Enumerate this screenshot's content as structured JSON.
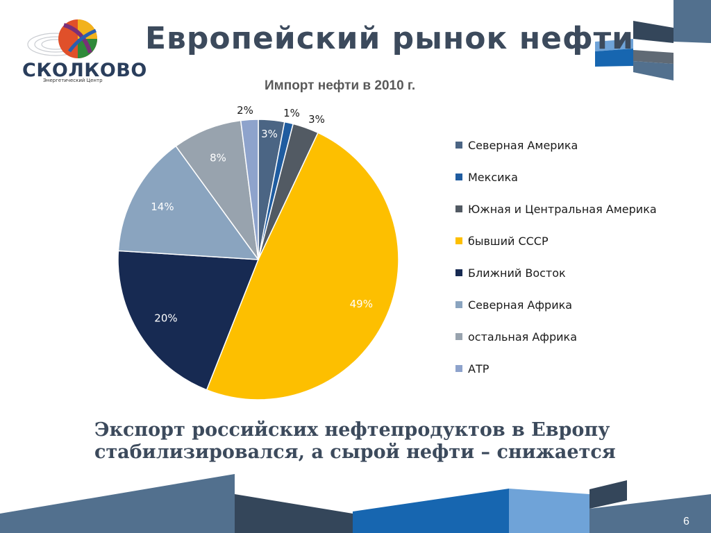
{
  "logo": {
    "text": "СКОЛКОВО",
    "subtitle": "Энергетический Центр"
  },
  "title": "Европейский рынок нефти",
  "caption": {
    "line1": "Экспорт российских нефтепродуктов в Европу",
    "line2": "стабилизировался, а сырой нефти – снижается"
  },
  "page_number": "6",
  "colors": {
    "title": "#3c4a5c",
    "deco_dark": "#34465a",
    "deco_mid": "#52708e",
    "deco_light": "#6fa3d8",
    "deco_blue": "#1766b0"
  },
  "chart_data": {
    "type": "pie",
    "title": "Импорт нефти в 2010 г.",
    "legend_position": "right",
    "slices": [
      {
        "name": "Северная Америка",
        "value": 3,
        "label": "3%",
        "color": "#4b6584"
      },
      {
        "name": "Мексика",
        "value": 1,
        "label": "1%",
        "color": "#1f5ca0"
      },
      {
        "name": "Южная и Центральная Америка",
        "value": 3,
        "label": "3%",
        "color": "#525a63"
      },
      {
        "name": "бывший СССР",
        "value": 49,
        "label": "49%",
        "color": "#fdbf00"
      },
      {
        "name": "Ближний Восток",
        "value": 20,
        "label": "20%",
        "color": "#172a52"
      },
      {
        "name": "Северная Африка",
        "value": 14,
        "label": "14%",
        "color": "#8aa4bf"
      },
      {
        "name": "остальная Африка",
        "value": 8,
        "label": "8%",
        "color": "#98a3ae"
      },
      {
        "name": "АТР",
        "value": 2,
        "label": "2%",
        "color": "#8ea3cc"
      }
    ]
  }
}
